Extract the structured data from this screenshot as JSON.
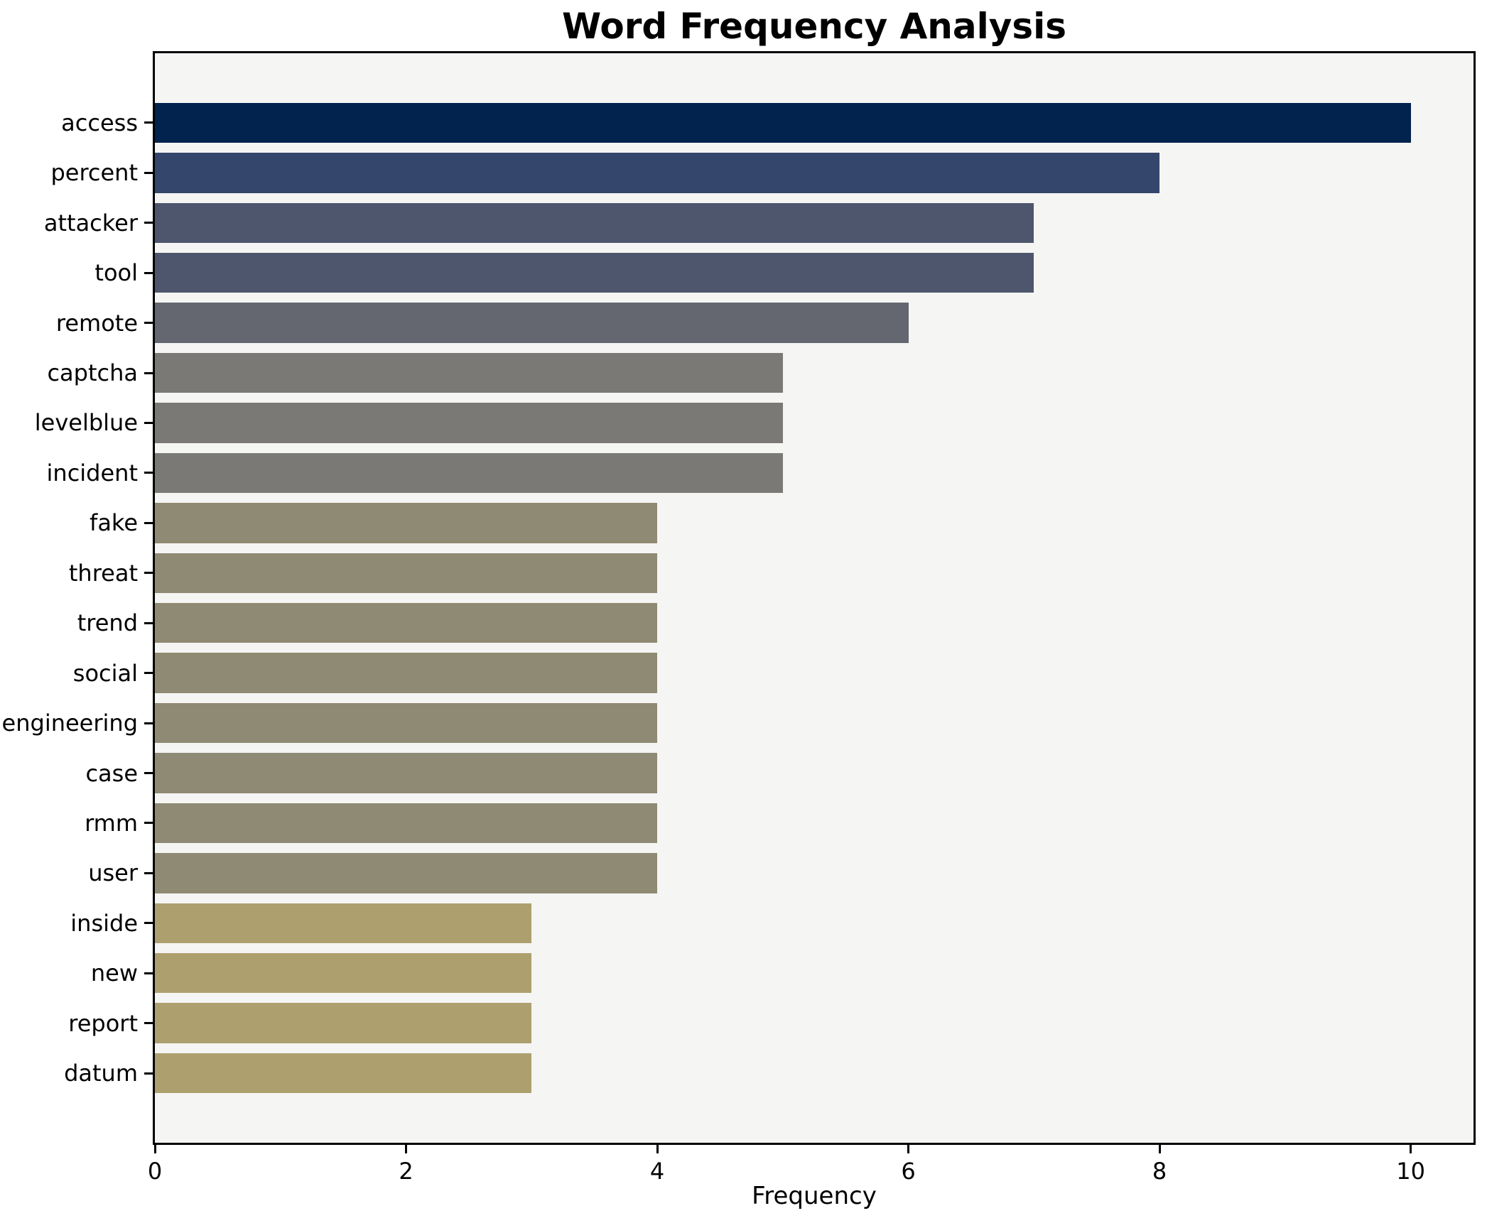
{
  "chart_data": {
    "type": "bar",
    "orientation": "horizontal",
    "title": "Word Frequency Analysis",
    "xlabel": "Frequency",
    "ylabel": "",
    "grid": false,
    "legend": null,
    "xlim": [
      0,
      10.5
    ],
    "xticks": [
      0,
      2,
      4,
      6,
      8,
      10
    ],
    "categories": [
      "access",
      "percent",
      "attacker",
      "tool",
      "remote",
      "captcha",
      "levelblue",
      "incident",
      "fake",
      "threat",
      "trend",
      "social",
      "engineering",
      "case",
      "rmm",
      "user",
      "inside",
      "new",
      "report",
      "datum"
    ],
    "values": [
      10,
      8,
      7,
      7,
      6,
      5,
      5,
      5,
      4,
      4,
      4,
      4,
      4,
      4,
      4,
      4,
      3,
      3,
      3,
      3
    ],
    "bar_colors": [
      "#02234E",
      "#34466B",
      "#4D566C",
      "#4D566C",
      "#64676F",
      "#7A7975",
      "#7A7975",
      "#7A7975",
      "#8F8A73",
      "#8F8A73",
      "#8F8A73",
      "#8F8A73",
      "#8F8A73",
      "#8F8A73",
      "#8F8A73",
      "#8F8A73",
      "#ADA06E",
      "#ADA06E",
      "#ADA06E",
      "#ADA06E"
    ],
    "colors": {
      "plot_background": "#f5f5f3",
      "figure_background": "#ffffff",
      "axis_spine": "#000000",
      "text": "#000000"
    }
  }
}
